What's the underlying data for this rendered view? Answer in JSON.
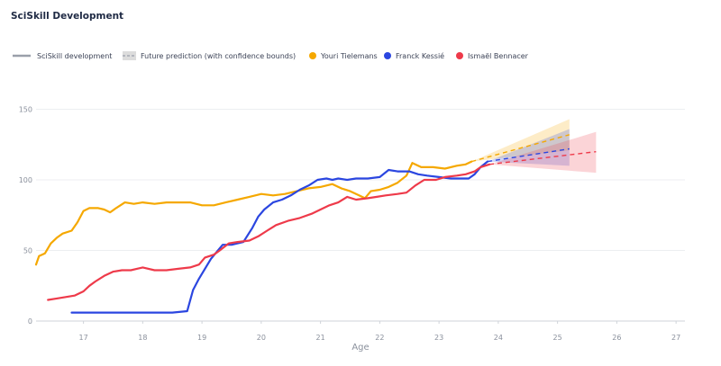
{
  "chart_data": {
    "type": "line",
    "title": "SciSkill Development",
    "xlabel": "Age",
    "ylabel": "",
    "xlim": [
      16.2,
      27.15
    ],
    "ylim": [
      0,
      165
    ],
    "x_ticks": [
      "17",
      "18",
      "19",
      "20",
      "21",
      "22",
      "23",
      "24",
      "25",
      "26",
      "27"
    ],
    "y_ticks": [
      "0",
      "50",
      "100",
      "150"
    ],
    "grid": "horizontal",
    "legend_position": "top-left",
    "legend": {
      "development_label": "SciSkill development",
      "prediction_label": "Future prediction (with confidence bounds)"
    },
    "series": [
      {
        "name": "Youri Tielemans",
        "color": "#f5a800",
        "points": [
          [
            16.2,
            40
          ],
          [
            16.25,
            46
          ],
          [
            16.35,
            48
          ],
          [
            16.45,
            55
          ],
          [
            16.55,
            59
          ],
          [
            16.65,
            62
          ],
          [
            16.8,
            64
          ],
          [
            16.9,
            70
          ],
          [
            17.0,
            78
          ],
          [
            17.1,
            80
          ],
          [
            17.25,
            80
          ],
          [
            17.35,
            79
          ],
          [
            17.45,
            77
          ],
          [
            17.55,
            80
          ],
          [
            17.7,
            84
          ],
          [
            17.85,
            83
          ],
          [
            18.0,
            84
          ],
          [
            18.2,
            83
          ],
          [
            18.4,
            84
          ],
          [
            18.6,
            84
          ],
          [
            18.8,
            84
          ],
          [
            19.0,
            82
          ],
          [
            19.2,
            82
          ],
          [
            19.4,
            84
          ],
          [
            19.6,
            86
          ],
          [
            19.8,
            88
          ],
          [
            20.0,
            90
          ],
          [
            20.2,
            89
          ],
          [
            20.4,
            90
          ],
          [
            20.6,
            92
          ],
          [
            20.8,
            94
          ],
          [
            21.0,
            95
          ],
          [
            21.2,
            97
          ],
          [
            21.35,
            94
          ],
          [
            21.5,
            92
          ],
          [
            21.65,
            89
          ],
          [
            21.75,
            87
          ],
          [
            21.85,
            92
          ],
          [
            22.0,
            93
          ],
          [
            22.15,
            95
          ],
          [
            22.3,
            98
          ],
          [
            22.45,
            103
          ],
          [
            22.55,
            112
          ],
          [
            22.7,
            109
          ],
          [
            22.9,
            109
          ],
          [
            23.1,
            108
          ],
          [
            23.3,
            110
          ],
          [
            23.45,
            111
          ],
          [
            23.55,
            113
          ]
        ]
      },
      {
        "name": "Franck Kessié",
        "color": "#2b46e0",
        "points": [
          [
            16.8,
            6
          ],
          [
            17.5,
            6
          ],
          [
            18.0,
            6
          ],
          [
            18.5,
            6
          ],
          [
            18.75,
            7
          ],
          [
            18.85,
            22
          ],
          [
            18.95,
            30
          ],
          [
            19.05,
            37
          ],
          [
            19.15,
            44
          ],
          [
            19.25,
            49
          ],
          [
            19.35,
            54
          ],
          [
            19.5,
            54
          ],
          [
            19.7,
            56
          ],
          [
            19.85,
            66
          ],
          [
            19.95,
            74
          ],
          [
            20.05,
            79
          ],
          [
            20.2,
            84
          ],
          [
            20.35,
            86
          ],
          [
            20.5,
            89
          ],
          [
            20.65,
            93
          ],
          [
            20.8,
            96
          ],
          [
            20.95,
            100
          ],
          [
            21.1,
            101
          ],
          [
            21.2,
            100
          ],
          [
            21.3,
            101
          ],
          [
            21.45,
            100
          ],
          [
            21.6,
            101
          ],
          [
            21.8,
            101
          ],
          [
            22.0,
            102
          ],
          [
            22.15,
            107
          ],
          [
            22.3,
            106
          ],
          [
            22.5,
            106
          ],
          [
            22.65,
            104
          ],
          [
            22.8,
            103
          ],
          [
            23.0,
            102
          ],
          [
            23.2,
            101
          ],
          [
            23.35,
            101
          ],
          [
            23.5,
            101
          ],
          [
            23.6,
            104
          ],
          [
            23.7,
            109
          ],
          [
            23.82,
            113
          ]
        ]
      },
      {
        "name": "Ismaël Bennacer",
        "color": "#ee3a4a",
        "points": [
          [
            16.4,
            15
          ],
          [
            16.55,
            16
          ],
          [
            16.7,
            17
          ],
          [
            16.85,
            18
          ],
          [
            17.0,
            21
          ],
          [
            17.1,
            25
          ],
          [
            17.2,
            28
          ],
          [
            17.35,
            32
          ],
          [
            17.5,
            35
          ],
          [
            17.65,
            36
          ],
          [
            17.8,
            36
          ],
          [
            17.9,
            37
          ],
          [
            18.0,
            38
          ],
          [
            18.2,
            36
          ],
          [
            18.4,
            36
          ],
          [
            18.6,
            37
          ],
          [
            18.8,
            38
          ],
          [
            18.95,
            40
          ],
          [
            19.05,
            45
          ],
          [
            19.2,
            47
          ],
          [
            19.3,
            50
          ],
          [
            19.45,
            55
          ],
          [
            19.6,
            56
          ],
          [
            19.8,
            57
          ],
          [
            19.95,
            60
          ],
          [
            20.1,
            64
          ],
          [
            20.25,
            68
          ],
          [
            20.45,
            71
          ],
          [
            20.65,
            73
          ],
          [
            20.85,
            76
          ],
          [
            21.0,
            79
          ],
          [
            21.15,
            82
          ],
          [
            21.3,
            84
          ],
          [
            21.45,
            88
          ],
          [
            21.6,
            86
          ],
          [
            21.8,
            87
          ],
          [
            21.95,
            88
          ],
          [
            22.1,
            89
          ],
          [
            22.3,
            90
          ],
          [
            22.45,
            91
          ],
          [
            22.6,
            96
          ],
          [
            22.75,
            100
          ],
          [
            22.95,
            100
          ],
          [
            23.1,
            102
          ],
          [
            23.3,
            103
          ],
          [
            23.45,
            104
          ],
          [
            23.6,
            106
          ],
          [
            23.7,
            109
          ],
          [
            23.85,
            111
          ]
        ]
      }
    ],
    "predictions": [
      {
        "name": "Youri Tielemans",
        "color": "#f5a800",
        "x": [
          23.55,
          25.2
        ],
        "mid": [
          113,
          132
        ],
        "low": [
          113,
          121
        ],
        "high": [
          113,
          143
        ]
      },
      {
        "name": "Franck Kessié",
        "color": "#2b46e0",
        "x": [
          23.82,
          25.2
        ],
        "mid": [
          113,
          122
        ],
        "low": [
          113,
          110
        ],
        "high": [
          113,
          136
        ]
      },
      {
        "name": "Ismaël Bennacer",
        "color": "#ee3a4a",
        "x": [
          23.85,
          25.65
        ],
        "mid": [
          111,
          120
        ],
        "low": [
          111,
          105
        ],
        "high": [
          111,
          134
        ]
      }
    ]
  }
}
